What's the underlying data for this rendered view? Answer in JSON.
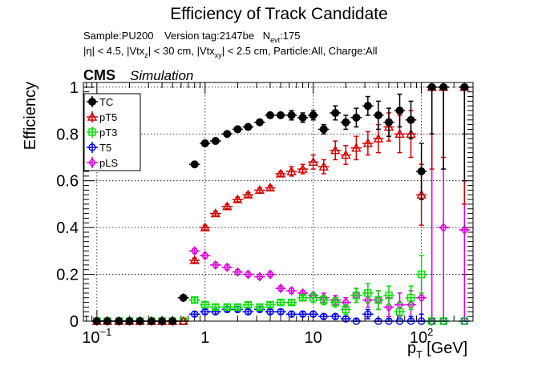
{
  "header": {
    "title": "Efficiency of Track Candidate",
    "sample_line": {
      "sample": "Sample:PU200",
      "version": "Version tag:2147be",
      "nevt_main": "N",
      "nevt_sub": "evt",
      "nevt_value": ":175"
    },
    "cuts_line": {
      "eta": "|η| < 4.5, |Vtx",
      "vtxz_sub": "z",
      "mid": "| < 30 cm, |Vtx",
      "vtxxy_sub": "xy",
      "rest": "| < 2.5 cm, Particle:All, Charge:All"
    },
    "cms": "CMS",
    "simulation": "Simulation"
  },
  "chart_data": {
    "type": "scatter",
    "xscale": "log",
    "xlim": [
      0.075,
      300
    ],
    "ylim": [
      0,
      1.02
    ],
    "ylabel": "Efficiency",
    "xlabel_main": "p",
    "xlabel_sub": "T",
    "xlabel_unit": "[GeV]",
    "grid": true,
    "legend_position": "top-left",
    "x_ticks": [
      {
        "value": 0.1,
        "base": "10",
        "exp": "−1"
      },
      {
        "value": 1,
        "label": "1"
      },
      {
        "value": 10,
        "label": "10"
      },
      {
        "value": 100,
        "base": "10",
        "exp": "2"
      }
    ],
    "y_ticks": [
      {
        "value": 0,
        "label": "0"
      },
      {
        "value": 0.2,
        "label": "0.2"
      },
      {
        "value": 0.4,
        "label": "0.4"
      },
      {
        "value": 0.6,
        "label": "0.6"
      },
      {
        "value": 0.8,
        "label": "0.8"
      },
      {
        "value": 1,
        "label": "1"
      }
    ],
    "series": [
      {
        "name": "TC",
        "color": "#000000",
        "marker": "filled-circle",
        "points": [
          [
            0.1,
            0,
            0
          ],
          [
            0.125,
            0,
            0
          ],
          [
            0.16,
            0,
            0
          ],
          [
            0.2,
            0,
            0
          ],
          [
            0.25,
            0,
            0
          ],
          [
            0.32,
            0,
            0
          ],
          [
            0.4,
            0,
            0
          ],
          [
            0.5,
            0,
            0
          ],
          [
            0.63,
            0.1,
            0.01
          ],
          [
            0.8,
            0.67,
            0.01
          ],
          [
            1.0,
            0.76,
            0.01
          ],
          [
            1.25,
            0.77,
            0.01
          ],
          [
            1.6,
            0.8,
            0.01
          ],
          [
            2.0,
            0.82,
            0.01
          ],
          [
            2.5,
            0.83,
            0.01
          ],
          [
            3.2,
            0.85,
            0.01
          ],
          [
            4.0,
            0.88,
            0.01
          ],
          [
            5.0,
            0.88,
            0.01
          ],
          [
            6.3,
            0.88,
            0.02
          ],
          [
            8.0,
            0.87,
            0.02
          ],
          [
            10,
            0.88,
            0.02
          ],
          [
            12.5,
            0.82,
            0.02
          ],
          [
            16,
            0.89,
            0.03
          ],
          [
            20,
            0.85,
            0.03
          ],
          [
            25,
            0.87,
            0.04
          ],
          [
            32,
            0.92,
            0.04
          ],
          [
            40,
            0.88,
            0.06
          ],
          [
            50,
            0.85,
            0.06
          ],
          [
            63,
            0.9,
            0.07
          ],
          [
            80,
            0.86,
            0.08
          ],
          [
            100,
            0.64,
            0.12
          ],
          [
            125,
            1.0,
            0.2
          ],
          [
            160,
            1.0,
            0.35
          ],
          [
            250,
            1.0,
            0.4
          ]
        ]
      },
      {
        "name": "pT5",
        "color": "#d40000",
        "marker": "open-triangle",
        "points": [
          [
            0.1,
            0,
            0
          ],
          [
            0.125,
            0,
            0
          ],
          [
            0.16,
            0,
            0
          ],
          [
            0.2,
            0,
            0
          ],
          [
            0.25,
            0,
            0
          ],
          [
            0.32,
            0,
            0
          ],
          [
            0.4,
            0,
            0
          ],
          [
            0.5,
            0,
            0
          ],
          [
            0.63,
            0,
            0
          ],
          [
            0.8,
            0.26,
            0.01
          ],
          [
            1.0,
            0.4,
            0.01
          ],
          [
            1.25,
            0.46,
            0.01
          ],
          [
            1.6,
            0.49,
            0.01
          ],
          [
            2.0,
            0.52,
            0.01
          ],
          [
            2.5,
            0.54,
            0.01
          ],
          [
            3.2,
            0.56,
            0.01
          ],
          [
            4.0,
            0.57,
            0.01
          ],
          [
            5.0,
            0.63,
            0.01
          ],
          [
            6.3,
            0.64,
            0.02
          ],
          [
            8.0,
            0.65,
            0.02
          ],
          [
            10,
            0.68,
            0.03
          ],
          [
            12.5,
            0.66,
            0.03
          ],
          [
            16,
            0.73,
            0.04
          ],
          [
            20,
            0.71,
            0.04
          ],
          [
            25,
            0.74,
            0.05
          ],
          [
            32,
            0.76,
            0.05
          ],
          [
            40,
            0.78,
            0.06
          ],
          [
            50,
            0.83,
            0.06
          ],
          [
            63,
            0.8,
            0.08
          ],
          [
            80,
            0.8,
            0.1
          ],
          [
            100,
            0.54,
            0.13
          ],
          [
            125,
            1.0,
            0.35
          ],
          [
            160,
            1.0,
            0.3
          ],
          [
            250,
            1.0,
            0.5
          ]
        ]
      },
      {
        "name": "pT3",
        "color": "#00e000",
        "marker": "open-square",
        "points": [
          [
            0.1,
            0,
            0
          ],
          [
            0.125,
            0,
            0
          ],
          [
            0.16,
            0,
            0
          ],
          [
            0.2,
            0,
            0
          ],
          [
            0.25,
            0,
            0
          ],
          [
            0.32,
            0,
            0
          ],
          [
            0.4,
            0,
            0
          ],
          [
            0.5,
            0,
            0
          ],
          [
            0.63,
            0,
            0
          ],
          [
            0.8,
            0.09,
            0.01
          ],
          [
            1.0,
            0.07,
            0.01
          ],
          [
            1.25,
            0.06,
            0.01
          ],
          [
            1.6,
            0.06,
            0.01
          ],
          [
            2.0,
            0.06,
            0.01
          ],
          [
            2.5,
            0.07,
            0.01
          ],
          [
            3.2,
            0.06,
            0.01
          ],
          [
            4.0,
            0.07,
            0.01
          ],
          [
            5.0,
            0.08,
            0.01
          ],
          [
            6.3,
            0.08,
            0.01
          ],
          [
            8.0,
            0.1,
            0.01
          ],
          [
            10,
            0.1,
            0.02
          ],
          [
            12.5,
            0.09,
            0.02
          ],
          [
            16,
            0.08,
            0.02
          ],
          [
            20,
            0.05,
            0.02
          ],
          [
            25,
            0.11,
            0.03
          ],
          [
            32,
            0.12,
            0.04
          ],
          [
            40,
            0.09,
            0.04
          ],
          [
            50,
            0.11,
            0.04
          ],
          [
            63,
            0.04,
            0.04
          ],
          [
            80,
            0.1,
            0.05
          ],
          [
            100,
            0.2,
            0.08
          ],
          [
            125,
            0,
            0
          ],
          [
            160,
            0,
            0
          ],
          [
            250,
            0,
            0
          ]
        ]
      },
      {
        "name": "T5",
        "color": "#0000ff",
        "marker": "open-circle",
        "points": [
          [
            0.1,
            0,
            0
          ],
          [
            0.125,
            0,
            0
          ],
          [
            0.16,
            0,
            0
          ],
          [
            0.2,
            0,
            0
          ],
          [
            0.25,
            0,
            0
          ],
          [
            0.32,
            0,
            0
          ],
          [
            0.4,
            0,
            0
          ],
          [
            0.5,
            0,
            0
          ],
          [
            0.63,
            0,
            0
          ],
          [
            0.8,
            0.03,
            0.01
          ],
          [
            1.0,
            0.04,
            0.01
          ],
          [
            1.25,
            0.04,
            0.01
          ],
          [
            1.6,
            0.05,
            0.01
          ],
          [
            2.0,
            0.05,
            0.01
          ],
          [
            2.5,
            0.04,
            0.01
          ],
          [
            3.2,
            0.05,
            0.01
          ],
          [
            4.0,
            0.04,
            0.01
          ],
          [
            5.0,
            0.04,
            0.01
          ],
          [
            6.3,
            0.03,
            0.01
          ],
          [
            8.0,
            0.03,
            0.01
          ],
          [
            10,
            0.03,
            0.01
          ],
          [
            12.5,
            0.02,
            0.01
          ],
          [
            16,
            0.02,
            0.01
          ],
          [
            20,
            0.01,
            0.01
          ],
          [
            25,
            0,
            0.01
          ],
          [
            32,
            0.03,
            0.02
          ],
          [
            40,
            0,
            0.01
          ],
          [
            50,
            0,
            0.01
          ],
          [
            63,
            0,
            0.01
          ],
          [
            80,
            0,
            0.02
          ],
          [
            100,
            0,
            0.03
          ],
          [
            125,
            0,
            0
          ],
          [
            160,
            0,
            0
          ],
          [
            250,
            0,
            0
          ]
        ]
      },
      {
        "name": "pLS",
        "color": "#e000e0",
        "marker": "open-diamond",
        "points": [
          [
            0.1,
            0,
            0
          ],
          [
            0.125,
            0,
            0
          ],
          [
            0.16,
            0,
            0
          ],
          [
            0.2,
            0,
            0
          ],
          [
            0.25,
            0,
            0
          ],
          [
            0.32,
            0,
            0
          ],
          [
            0.4,
            0,
            0
          ],
          [
            0.5,
            0,
            0
          ],
          [
            0.63,
            0.1,
            0.01
          ],
          [
            0.8,
            0.3,
            0.01
          ],
          [
            1.0,
            0.28,
            0.01
          ],
          [
            1.25,
            0.24,
            0.01
          ],
          [
            1.6,
            0.23,
            0.01
          ],
          [
            2.0,
            0.21,
            0.01
          ],
          [
            2.5,
            0.2,
            0.01
          ],
          [
            3.2,
            0.19,
            0.01
          ],
          [
            4.0,
            0.2,
            0.01
          ],
          [
            5.0,
            0.14,
            0.01
          ],
          [
            6.3,
            0.13,
            0.01
          ],
          [
            8.0,
            0.12,
            0.01
          ],
          [
            10,
            0.11,
            0.01
          ],
          [
            12.5,
            0.1,
            0.02
          ],
          [
            16,
            0.09,
            0.02
          ],
          [
            20,
            0.08,
            0.02
          ],
          [
            25,
            0.11,
            0.03
          ],
          [
            32,
            0.09,
            0.03
          ],
          [
            40,
            0.09,
            0.04
          ],
          [
            50,
            0.06,
            0.04
          ],
          [
            63,
            0.07,
            0.05
          ],
          [
            80,
            0.07,
            0.06
          ],
          [
            100,
            0.1,
            0.1
          ],
          [
            125,
            0,
            0.8
          ],
          [
            160,
            0.4,
            0.6
          ],
          [
            250,
            0.39,
            0.6
          ]
        ]
      }
    ]
  }
}
